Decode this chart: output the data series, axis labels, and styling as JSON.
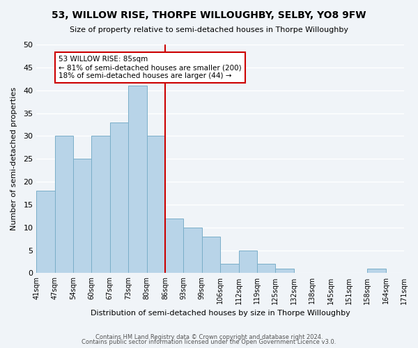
{
  "title": "53, WILLOW RISE, THORPE WILLOUGHBY, SELBY, YO8 9FW",
  "subtitle": "Size of property relative to semi-detached houses in Thorpe Willoughby",
  "xlabel": "Distribution of semi-detached houses by size in Thorpe Willoughby",
  "ylabel": "Number of semi-detached properties",
  "bin_edges": [
    "41sqm",
    "47sqm",
    "54sqm",
    "60sqm",
    "67sqm",
    "73sqm",
    "80sqm",
    "86sqm",
    "93sqm",
    "99sqm",
    "106sqm",
    "112sqm",
    "119sqm",
    "125sqm",
    "132sqm",
    "138sqm",
    "145sqm",
    "151sqm",
    "158sqm",
    "164sqm",
    "171sqm"
  ],
  "bar_values": [
    18,
    30,
    25,
    30,
    33,
    41,
    30,
    12,
    10,
    8,
    2,
    5,
    2,
    1,
    0,
    0,
    0,
    0,
    1,
    0
  ],
  "bar_color": "#b8d4e8",
  "bar_edge_color": "#7aaec8",
  "marker_label": "53 WILLOW RISE: 85sqm",
  "pct_smaller": 81,
  "pct_smaller_count": 200,
  "pct_larger": 18,
  "pct_larger_count": 44,
  "marker_line_color": "#cc0000",
  "annotation_box_edge": "#cc0000",
  "ylim": [
    0,
    50
  ],
  "yticks": [
    0,
    5,
    10,
    15,
    20,
    25,
    30,
    35,
    40,
    45,
    50
  ],
  "footer1": "Contains HM Land Registry data © Crown copyright and database right 2024.",
  "footer2": "Contains public sector information licensed under the Open Government Licence v3.0.",
  "bg_color": "#f0f4f8",
  "grid_color": "#ffffff"
}
